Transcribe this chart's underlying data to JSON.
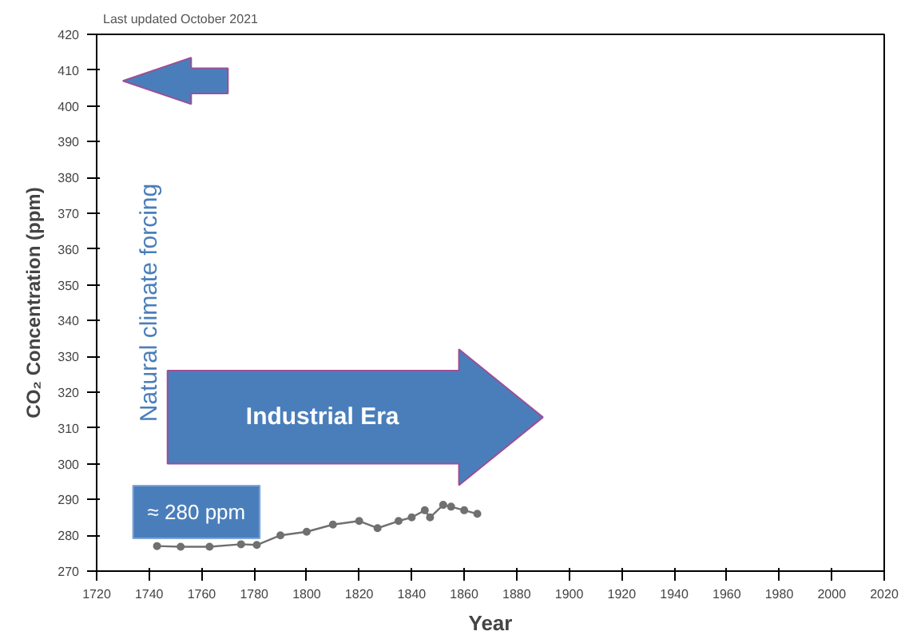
{
  "chart_data": {
    "type": "line",
    "xlabel": "Year",
    "ylabel": "CO₂ Concentration (ppm)",
    "annotations": [
      "Last updated October 2021",
      "Natural climate forcing",
      "Industrial Era",
      "≈ 280 ppm"
    ],
    "x": [
      1743,
      1752,
      1763,
      1775,
      1781,
      1790,
      1800,
      1810,
      1820,
      1827,
      1835,
      1840,
      1845,
      1847,
      1852,
      1855,
      1860,
      1865
    ],
    "series": [
      {
        "color": "#707070",
        "values": [
          277,
          276.8,
          276.8,
          277.5,
          277.3,
          280,
          281,
          283,
          284,
          282,
          284,
          285,
          287,
          285,
          288.5,
          288,
          287,
          286
        ]
      }
    ],
    "xlim": [
      1720,
      2020
    ],
    "ylim": [
      270,
      420
    ],
    "xticks": [
      1720,
      1740,
      1760,
      1780,
      1800,
      1820,
      1840,
      1860,
      1880,
      1900,
      1920,
      1940,
      1960,
      1980,
      2000,
      2020
    ],
    "yticks": [
      270,
      280,
      290,
      300,
      310,
      320,
      330,
      340,
      350,
      360,
      370,
      380,
      390,
      400,
      410,
      420
    ],
    "grid": false,
    "marker": "circle",
    "line_style": "solid"
  }
}
